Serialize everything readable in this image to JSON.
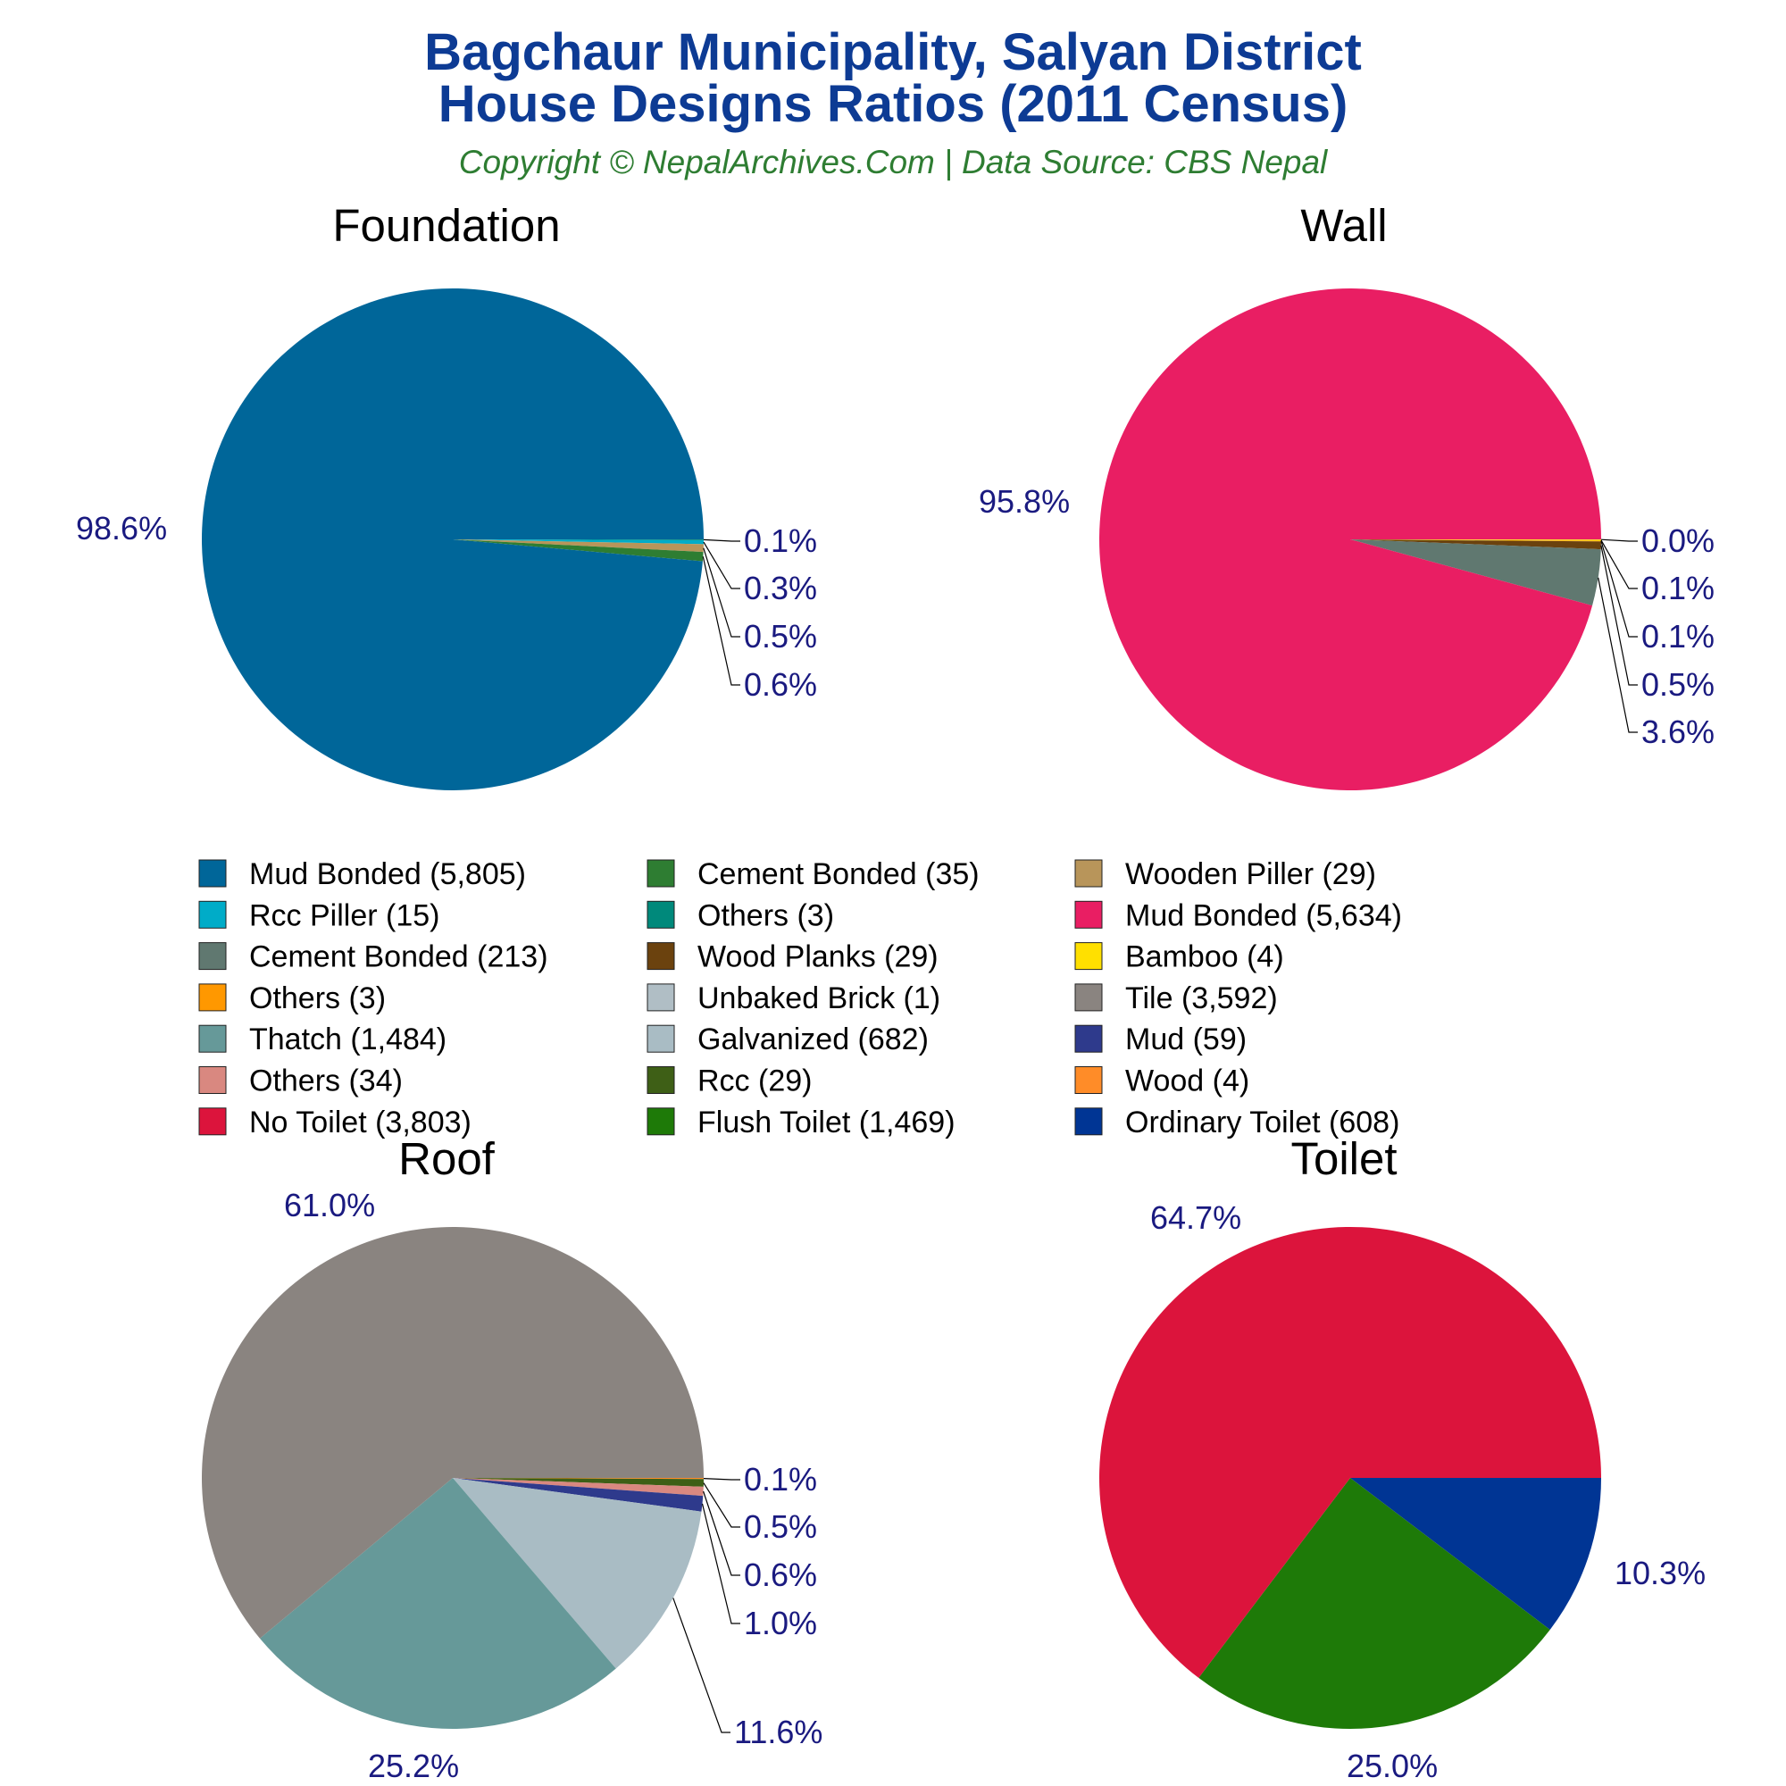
{
  "header": {
    "title_line1": "Bagchaur Municipality, Salyan District",
    "title_line2": "House Designs Ratios (2011 Census)",
    "subtitle": "Copyright © NepalArchives.Com | Data Source: CBS Nepal"
  },
  "chart_data": [
    {
      "type": "pie",
      "title": "Foundation",
      "slices": [
        {
          "label": "Mud Bonded",
          "value": 5805,
          "pct": "98.6%",
          "color": "#006699"
        },
        {
          "label": "Rcc Piller",
          "value": 15,
          "pct": "0.3%",
          "color": "#00acc8"
        },
        {
          "label": "Wooden Piller",
          "value": 29,
          "pct": "0.5%",
          "color": "#b8955a"
        },
        {
          "label": "Cement Bonded",
          "value": 35,
          "pct": "0.6%",
          "color": "#2e7d32"
        },
        {
          "label": "Others",
          "value": 3,
          "pct": "0.1%",
          "color": "#00897b"
        }
      ]
    },
    {
      "type": "pie",
      "title": "Wall",
      "slices": [
        {
          "label": "Mud Bonded",
          "value": 5634,
          "pct": "95.8%",
          "color": "#e91e63"
        },
        {
          "label": "Cement Bonded",
          "value": 213,
          "pct": "3.6%",
          "color": "#607870"
        },
        {
          "label": "Wood Planks",
          "value": 29,
          "pct": "0.5%",
          "color": "#6b420e"
        },
        {
          "label": "Bamboo",
          "value": 4,
          "pct": "0.1%",
          "color": "#ffe000"
        },
        {
          "label": "Others",
          "value": 3,
          "pct": "0.1%",
          "color": "#ff9800"
        },
        {
          "label": "Unbaked Brick",
          "value": 1,
          "pct": "0.0%",
          "color": "#b0bec5"
        }
      ]
    },
    {
      "type": "pie",
      "title": "Roof",
      "slices": [
        {
          "label": "Tile",
          "value": 3592,
          "pct": "61.0%",
          "color": "#8a8480"
        },
        {
          "label": "Thatch",
          "value": 1484,
          "pct": "25.2%",
          "color": "#669999"
        },
        {
          "label": "Galvanized",
          "value": 682,
          "pct": "11.6%",
          "color": "#a9bcc4"
        },
        {
          "label": "Mud",
          "value": 59,
          "pct": "1.0%",
          "color": "#2e3a8c"
        },
        {
          "label": "Others",
          "value": 34,
          "pct": "0.6%",
          "color": "#d98880"
        },
        {
          "label": "Rcc",
          "value": 29,
          "pct": "0.5%",
          "color": "#3e5f16"
        },
        {
          "label": "Wood",
          "value": 4,
          "pct": "0.1%",
          "color": "#ff8c28"
        }
      ]
    },
    {
      "type": "pie",
      "title": "Toilet",
      "slices": [
        {
          "label": "No Toilet",
          "value": 3803,
          "pct": "64.7%",
          "color": "#dc143c"
        },
        {
          "label": "Flush Toilet",
          "value": 1469,
          "pct": "25.0%",
          "color": "#1e7a08"
        },
        {
          "label": "Ordinary Toilet",
          "value": 608,
          "pct": "10.3%",
          "color": "#003594"
        }
      ]
    }
  ],
  "legend": {
    "columns": [
      [
        {
          "text": "Mud Bonded (5,805)",
          "color": "#006699"
        },
        {
          "text": "Rcc Piller (15)",
          "color": "#00acc8"
        },
        {
          "text": "Cement Bonded (213)",
          "color": "#607870"
        },
        {
          "text": "Others (3)",
          "color": "#ff9800"
        },
        {
          "text": "Thatch (1,484)",
          "color": "#669999"
        },
        {
          "text": "Others (34)",
          "color": "#d98880"
        },
        {
          "text": "No Toilet (3,803)",
          "color": "#dc143c"
        }
      ],
      [
        {
          "text": "Cement Bonded (35)",
          "color": "#2e7d32"
        },
        {
          "text": "Others (3)",
          "color": "#00897b"
        },
        {
          "text": "Wood Planks (29)",
          "color": "#6b420e"
        },
        {
          "text": "Unbaked Brick (1)",
          "color": "#b0bec5"
        },
        {
          "text": "Galvanized (682)",
          "color": "#a9bcc4"
        },
        {
          "text": "Rcc (29)",
          "color": "#3e5f16"
        },
        {
          "text": "Flush Toilet (1,469)",
          "color": "#1e7a08"
        }
      ],
      [
        {
          "text": "Wooden Piller (29)",
          "color": "#b8955a"
        },
        {
          "text": "Mud Bonded (5,634)",
          "color": "#e91e63"
        },
        {
          "text": "Bamboo (4)",
          "color": "#ffe000"
        },
        {
          "text": "Tile (3,592)",
          "color": "#8a8480"
        },
        {
          "text": "Mud (59)",
          "color": "#2e3a8c"
        },
        {
          "text": "Wood (4)",
          "color": "#ff8c28"
        },
        {
          "text": "Ordinary Toilet (608)",
          "color": "#003594"
        }
      ]
    ]
  }
}
